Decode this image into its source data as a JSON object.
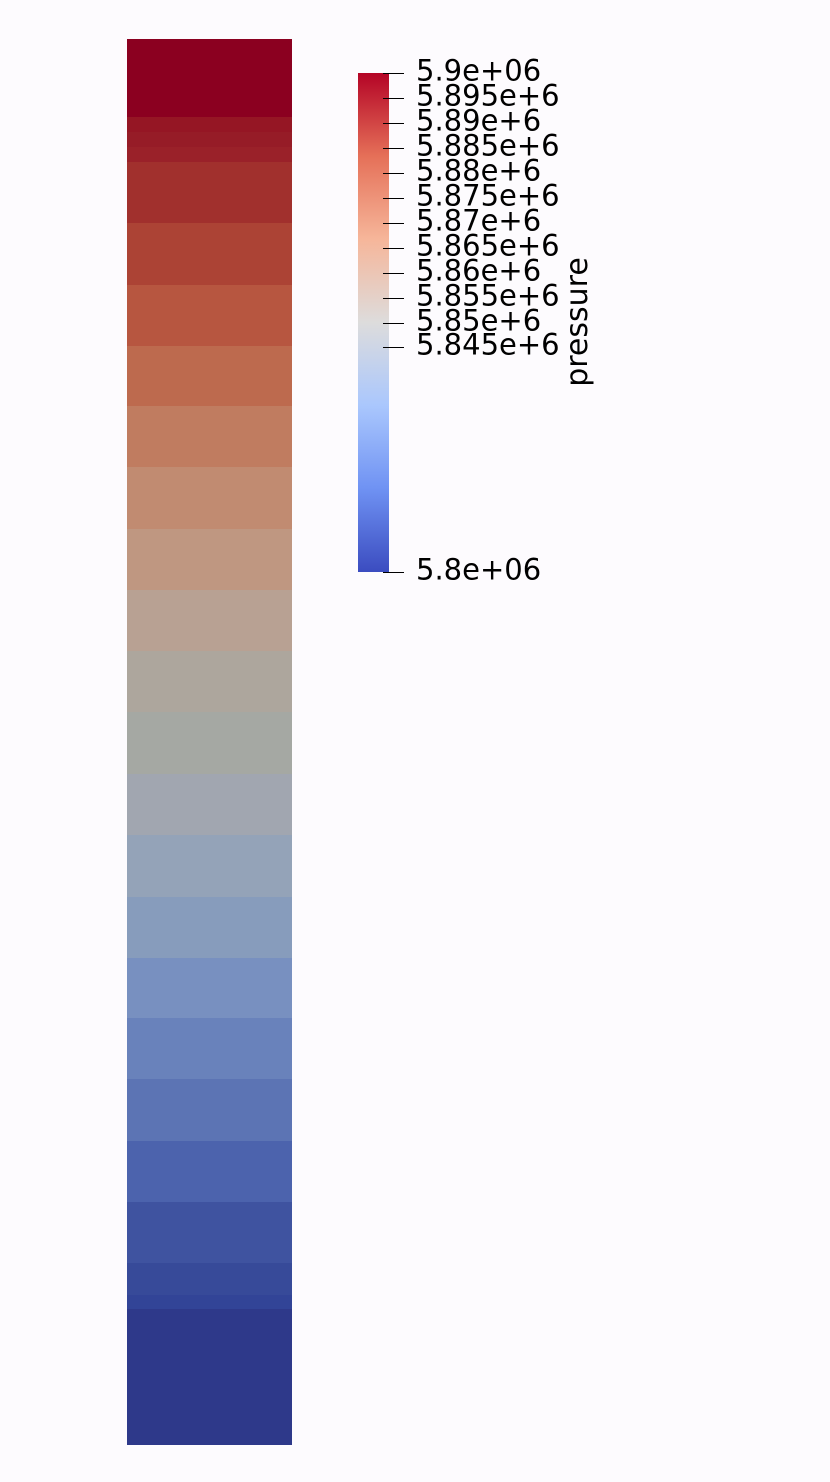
{
  "scalar_bar": {
    "title": "pressure",
    "range": [
      5800000,
      5900000
    ],
    "colormap": "Cool to Warm",
    "colormap_stops": [
      "#3b4cc0",
      "#6f92f3",
      "#aac7fd",
      "#dddcdc",
      "#f6b69a",
      "#e57058",
      "#b40426"
    ],
    "ticks": [
      {
        "value": 5900000,
        "label": "5.9e+06"
      },
      {
        "value": 5895000,
        "label": "5.895e+6"
      },
      {
        "value": 5890000,
        "label": "5.89e+6"
      },
      {
        "value": 5885000,
        "label": "5.885e+6"
      },
      {
        "value": 5880000,
        "label": "5.88e+6"
      },
      {
        "value": 5875000,
        "label": "5.875e+6"
      },
      {
        "value": 5870000,
        "label": "5.87e+6"
      },
      {
        "value": 5865000,
        "label": "5.865e+6"
      },
      {
        "value": 5860000,
        "label": "5.86e+6"
      },
      {
        "value": 5855000,
        "label": "5.855e+6"
      },
      {
        "value": 5850000,
        "label": "5.85e+6"
      },
      {
        "value": 5845000,
        "label": "5.845e+6"
      },
      {
        "value": 5800000,
        "label": "5.8e+06"
      }
    ]
  },
  "column_bands": [
    {
      "color": "#8b0020",
      "weight": 78
    },
    {
      "color": "#951624",
      "weight": 15
    },
    {
      "color": "#961c27",
      "weight": 15
    },
    {
      "color": "#9a2129",
      "weight": 15
    },
    {
      "color": "#a1302d",
      "weight": 61
    },
    {
      "color": "#ac4335",
      "weight": 62
    },
    {
      "color": "#b75640",
      "weight": 61
    },
    {
      "color": "#bd6a4e",
      "weight": 61
    },
    {
      "color": "#c07c60",
      "weight": 61
    },
    {
      "color": "#c18b71",
      "weight": 62
    },
    {
      "color": "#bf9781",
      "weight": 61
    },
    {
      "color": "#b8a193",
      "weight": 61
    },
    {
      "color": "#ada69d",
      "weight": 61
    },
    {
      "color": "#a5a8a3",
      "weight": 62
    },
    {
      "color": "#a1a6b0",
      "weight": 61
    },
    {
      "color": "#94a3b8",
      "weight": 62
    },
    {
      "color": "#879cbc",
      "weight": 61
    },
    {
      "color": "#7890c0",
      "weight": 61
    },
    {
      "color": "#6982bb",
      "weight": 61
    },
    {
      "color": "#5c74b4",
      "weight": 62
    },
    {
      "color": "#4c63ad",
      "weight": 61
    },
    {
      "color": "#3f53a0",
      "weight": 61
    },
    {
      "color": "#374a99",
      "weight": 32
    },
    {
      "color": "#324497",
      "weight": 14
    },
    {
      "color": "#2e398a",
      "weight": 136
    }
  ]
}
